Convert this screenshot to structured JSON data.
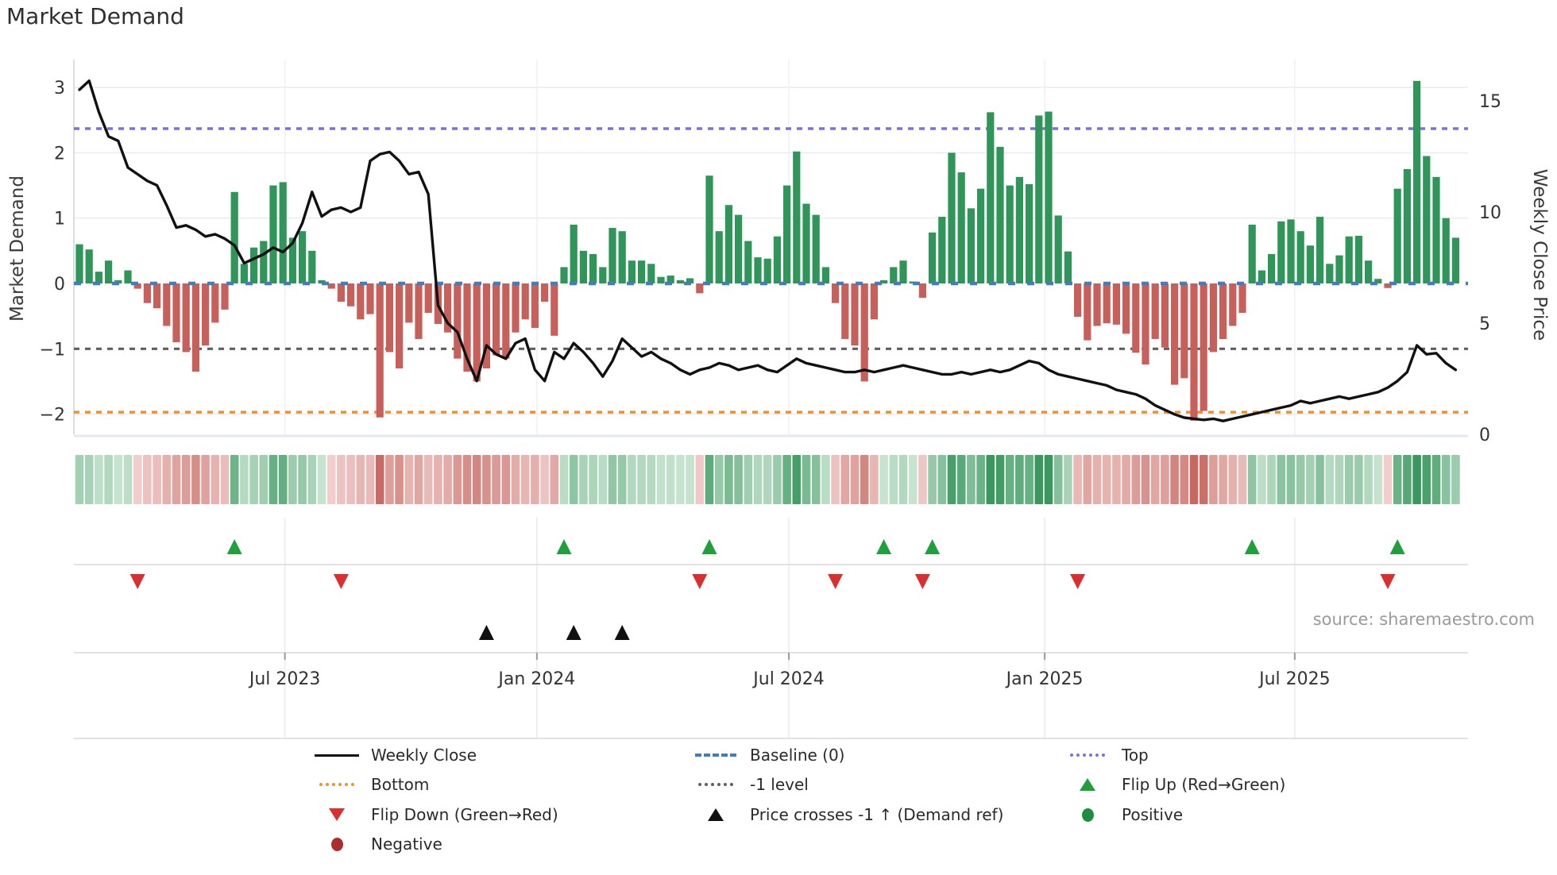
{
  "title": "Market Demand",
  "source_text": "source: sharemaestro.com",
  "axes": {
    "left_label": "Market Demand",
    "right_label": "Weekly Close Price",
    "left_ticks": [
      3,
      2,
      1,
      0,
      -1,
      -2
    ],
    "right_ticks": [
      15,
      10,
      5,
      0
    ],
    "x_ticks": [
      "Jul 2023",
      "Jan 2024",
      "Jul 2024",
      "Jan 2025",
      "Jul 2025"
    ]
  },
  "colors": {
    "bar_positive": "#2f9558",
    "bar_negative": "#c7605b",
    "price_line": "#111111",
    "baseline": "#3f7fbf",
    "top_level": "#7b70dd",
    "bottom_level": "#f0912d",
    "minus_one_level": "#5f5f5f",
    "flip_up": "#1fa03c",
    "flip_down": "#d92f2f",
    "price_cross": "#111111",
    "grid": "#ececf2"
  },
  "legend": {
    "items": [
      {
        "label": "Weekly Close",
        "swatch": "line-black"
      },
      {
        "label": "Baseline (0)",
        "swatch": "dash-blue"
      },
      {
        "label": "Top",
        "swatch": "dot-purple"
      },
      {
        "label": "Bottom",
        "swatch": "dot-orange"
      },
      {
        "label": "-1 level",
        "swatch": "dot-gray"
      },
      {
        "label": "Flip Up (Red→Green)",
        "swatch": "tri-up-green"
      },
      {
        "label": "Flip Down (Green→Red)",
        "swatch": "tri-down-red"
      },
      {
        "label": "Price crosses -1 ↑ (Demand ref)",
        "swatch": "tri-up-black"
      },
      {
        "label": "Positive",
        "swatch": "circle-green"
      },
      {
        "label": "Negative",
        "swatch": "circle-darkred"
      }
    ]
  },
  "chart_data": {
    "type": "bar",
    "title": "Market Demand",
    "ylabel_left": "Market Demand",
    "ylabel_right": "Weekly Close Price",
    "ylim_left": [
      -2.4,
      3.3
    ],
    "ylim_right": [
      0,
      16.2
    ],
    "levels": {
      "baseline": 0,
      "top": 2.37,
      "minus_one": -1,
      "bottom": -1.97
    },
    "x_tick_weeks": [
      21.2,
      47.2,
      73.2,
      99.6,
      125.4
    ],
    "x_tick_labels": [
      "Jul 2023",
      "Jan 2024",
      "Jul 2024",
      "Jan 2025",
      "Jul 2025"
    ],
    "demand": [
      0.6,
      0.52,
      0.18,
      0.35,
      0.05,
      0.2,
      -0.08,
      -0.3,
      -0.38,
      -0.65,
      -0.9,
      -1.05,
      -1.35,
      -0.95,
      -0.6,
      -0.4,
      1.4,
      0.3,
      0.55,
      0.65,
      1.5,
      1.55,
      0.7,
      0.8,
      0.5,
      0.05,
      -0.08,
      -0.28,
      -0.35,
      -0.55,
      -0.47,
      -2.05,
      -1.05,
      -1.3,
      -0.6,
      -0.85,
      -0.45,
      -0.62,
      -0.75,
      -1.15,
      -1.35,
      -1.5,
      -1.3,
      -1.1,
      -1.15,
      -0.75,
      -0.55,
      -0.68,
      -0.28,
      -0.8,
      0.25,
      0.9,
      0.5,
      0.45,
      0.25,
      0.85,
      0.8,
      0.35,
      0.35,
      0.3,
      0.1,
      0.12,
      0.05,
      0.08,
      -0.15,
      1.65,
      0.8,
      1.2,
      1.05,
      0.65,
      0.4,
      0.38,
      0.72,
      1.5,
      2.02,
      1.22,
      1.05,
      0.25,
      -0.3,
      -0.85,
      -0.95,
      -1.5,
      -0.55,
      0.05,
      0.25,
      0.35,
      0.03,
      -0.22,
      0.78,
      1.02,
      2.0,
      1.7,
      1.15,
      1.45,
      2.62,
      2.09,
      1.5,
      1.63,
      1.52,
      2.57,
      2.63,
      1.04,
      0.49,
      -0.51,
      -0.87,
      -0.65,
      -0.61,
      -0.63,
      -0.77,
      -1.06,
      -1.24,
      -0.85,
      -0.98,
      -1.55,
      -1.45,
      -2.1,
      -1.95,
      -1.05,
      -0.85,
      -0.65,
      -0.45,
      0.9,
      0.2,
      0.45,
      0.95,
      0.98,
      0.8,
      0.58,
      1.02,
      0.3,
      0.43,
      0.72,
      0.73,
      0.35,
      0.07,
      -0.07,
      1.45,
      1.75,
      3.1,
      1.95,
      1.63,
      1.0,
      0.7
    ],
    "price": [
      15.5,
      15.9,
      14.5,
      13.4,
      13.2,
      12.0,
      11.7,
      11.4,
      11.2,
      10.3,
      9.3,
      9.4,
      9.2,
      8.9,
      9.0,
      8.8,
      8.5,
      7.7,
      7.9,
      8.1,
      8.4,
      8.2,
      8.6,
      9.5,
      10.9,
      9.8,
      10.1,
      10.2,
      10.0,
      10.2,
      12.3,
      12.6,
      12.7,
      12.3,
      11.7,
      11.8,
      10.8,
      5.8,
      5.0,
      4.6,
      3.4,
      2.4,
      4.0,
      3.6,
      3.4,
      4.1,
      4.3,
      2.9,
      2.4,
      3.7,
      3.4,
      4.1,
      3.7,
      3.2,
      2.6,
      3.3,
      4.3,
      3.9,
      3.5,
      3.7,
      3.4,
      3.2,
      2.9,
      2.7,
      2.9,
      3.0,
      3.2,
      3.1,
      2.9,
      3.0,
      3.1,
      2.9,
      2.8,
      3.1,
      3.4,
      3.2,
      3.1,
      3.0,
      2.9,
      2.8,
      2.8,
      2.9,
      2.8,
      2.9,
      3.0,
      3.1,
      3.0,
      2.9,
      2.8,
      2.7,
      2.7,
      2.8,
      2.7,
      2.8,
      2.9,
      2.8,
      2.9,
      3.1,
      3.3,
      3.2,
      2.9,
      2.7,
      2.6,
      2.5,
      2.4,
      2.3,
      2.2,
      2.0,
      1.9,
      1.8,
      1.6,
      1.3,
      1.1,
      0.9,
      0.75,
      0.7,
      0.65,
      0.7,
      0.6,
      0.7,
      0.8,
      0.9,
      1.0,
      1.1,
      1.2,
      1.3,
      1.5,
      1.4,
      1.5,
      1.6,
      1.7,
      1.6,
      1.7,
      1.8,
      1.9,
      2.1,
      2.4,
      2.8,
      4.0,
      3.6,
      3.65,
      3.2,
      2.9
    ],
    "flip_up_weeks": [
      16,
      50,
      65,
      83,
      88,
      121,
      136
    ],
    "flip_down_weeks": [
      6,
      27,
      64,
      78,
      87,
      103,
      135
    ],
    "price_cross_weeks": [
      42,
      51,
      56
    ],
    "legend_position": "bottom",
    "grid": true
  }
}
